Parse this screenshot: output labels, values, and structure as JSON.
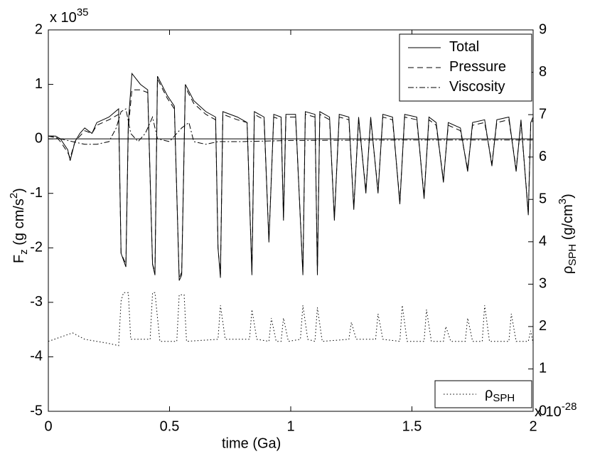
{
  "chart_data": {
    "type": "line",
    "xlabel": "time (Ga)",
    "ylabel": {
      "main": "F",
      "sub": "z",
      "rest": " (g cm/s",
      "sup": "2",
      "end": ")"
    },
    "y2label": {
      "main": "ρ",
      "sub": "SPH",
      "rest": " (g/cm",
      "sup": "3",
      "end": ")"
    },
    "y_exponent": {
      "base": "x 10",
      "power": "35"
    },
    "y2_exponent": {
      "base": "x 10",
      "power": "-28"
    },
    "xlim": [
      0,
      2
    ],
    "xticks": [
      0,
      0.5,
      1,
      1.5,
      2
    ],
    "ylim": [
      -5,
      2
    ],
    "yticks": [
      -5,
      -4,
      -3,
      -2,
      -1,
      0,
      1,
      2
    ],
    "y2lim": [
      0,
      9
    ],
    "y2ticks": [
      0,
      1,
      2,
      3,
      4,
      5,
      6,
      7,
      8,
      9
    ],
    "zero_line": true,
    "legend": "upper right",
    "legend2": "lower right",
    "series": [
      {
        "name": "Total",
        "color": "#000000",
        "style": "solid",
        "x": [
          0,
          0.03,
          0.05,
          0.08,
          0.09,
          0.11,
          0.13,
          0.15,
          0.18,
          0.2,
          0.25,
          0.29,
          0.3,
          0.32,
          0.33,
          0.345,
          0.38,
          0.41,
          0.43,
          0.44,
          0.45,
          0.49,
          0.52,
          0.54,
          0.55,
          0.565,
          0.6,
          0.65,
          0.69,
          0.7,
          0.71,
          0.72,
          0.78,
          0.82,
          0.84,
          0.85,
          0.89,
          0.91,
          0.93,
          0.96,
          0.97,
          0.98,
          1.02,
          1.05,
          1.06,
          1.1,
          1.11,
          1.12,
          1.16,
          1.18,
          1.2,
          1.24,
          1.26,
          1.28,
          1.31,
          1.33,
          1.36,
          1.38,
          1.42,
          1.45,
          1.47,
          1.52,
          1.55,
          1.57,
          1.6,
          1.63,
          1.65,
          1.7,
          1.73,
          1.75,
          1.8,
          1.83,
          1.85,
          1.9,
          1.93,
          1.95,
          1.98,
          1.99,
          2
        ],
        "values": [
          0.05,
          0.05,
          0,
          -0.2,
          -0.4,
          -0.05,
          0.1,
          0.2,
          0.1,
          0.3,
          0.4,
          0.55,
          -2.1,
          -2.35,
          0.3,
          1.2,
          1.0,
          0.9,
          -2.3,
          -2.5,
          1.15,
          0.8,
          0.6,
          -2.6,
          -2.5,
          1.0,
          0.7,
          0.5,
          0.4,
          -2.0,
          -2.55,
          0.5,
          0.4,
          0.3,
          -2.5,
          0.5,
          0.4,
          -1.9,
          0.45,
          0.4,
          -1.5,
          0.45,
          0.45,
          -2.5,
          0.5,
          0.45,
          -2.5,
          0.5,
          0.4,
          -1.5,
          0.45,
          0.4,
          -1.3,
          0.4,
          -1.0,
          0.4,
          -1.0,
          0.45,
          0.4,
          -1.2,
          0.45,
          0.4,
          -1.1,
          0.4,
          0.3,
          -0.8,
          0.3,
          0.2,
          -0.6,
          0.3,
          0.35,
          -0.5,
          0.35,
          0.4,
          -0.6,
          0.35,
          -1.4,
          0.3,
          0.4
        ]
      },
      {
        "name": "Pressure",
        "color": "#000000",
        "style": "dashed",
        "x": [
          0,
          0.03,
          0.05,
          0.08,
          0.09,
          0.11,
          0.13,
          0.15,
          0.18,
          0.2,
          0.25,
          0.29,
          0.3,
          0.32,
          0.33,
          0.345,
          0.38,
          0.41,
          0.43,
          0.44,
          0.45,
          0.49,
          0.52,
          0.54,
          0.55,
          0.565,
          0.6,
          0.65,
          0.69,
          0.7,
          0.71,
          0.72,
          0.78,
          0.82,
          0.84,
          0.85,
          0.89,
          0.91,
          0.93,
          0.96,
          0.97,
          0.98,
          1.02,
          1.05,
          1.06,
          1.1,
          1.11,
          1.12,
          1.16,
          1.18,
          1.2,
          1.24,
          1.26,
          1.28,
          1.31,
          1.33,
          1.36,
          1.38,
          1.42,
          1.45,
          1.47,
          1.52,
          1.55,
          1.57,
          1.6,
          1.63,
          1.65,
          1.7,
          1.73,
          1.75,
          1.8,
          1.83,
          1.85,
          1.9,
          1.93,
          1.95,
          1.98,
          1.99,
          2
        ],
        "values": [
          0.05,
          0.05,
          -0.05,
          -0.25,
          -0.35,
          -0.05,
          0.05,
          0.15,
          0.1,
          0.25,
          0.35,
          0.45,
          -2.1,
          -2.3,
          0.2,
          0.9,
          0.9,
          0.85,
          -2.3,
          -2.45,
          1.1,
          0.75,
          0.55,
          -2.55,
          -2.45,
          0.95,
          0.65,
          0.45,
          0.35,
          -2.0,
          -2.5,
          0.45,
          0.35,
          0.3,
          -2.45,
          0.45,
          0.35,
          -1.85,
          0.4,
          0.35,
          -1.45,
          0.4,
          0.4,
          -2.45,
          0.45,
          0.4,
          -2.45,
          0.45,
          0.35,
          -1.45,
          0.4,
          0.35,
          -1.25,
          0.35,
          -0.95,
          0.35,
          -0.95,
          0.4,
          0.35,
          -1.15,
          0.4,
          0.35,
          -1.05,
          0.35,
          0.25,
          -0.75,
          0.25,
          0.15,
          -0.55,
          0.25,
          0.3,
          -0.45,
          0.3,
          0.35,
          -0.55,
          0.3,
          -1.35,
          0.25,
          0.35
        ]
      },
      {
        "name": "Viscosity",
        "color": "#000000",
        "style": "dashdot",
        "x": [
          0,
          0.05,
          0.1,
          0.15,
          0.2,
          0.25,
          0.28,
          0.3,
          0.32,
          0.34,
          0.37,
          0.4,
          0.43,
          0.45,
          0.5,
          0.55,
          0.58,
          0.6,
          0.65,
          0.7,
          0.8,
          1,
          1.5,
          2
        ],
        "values": [
          0.05,
          0,
          -0.05,
          -0.1,
          -0.1,
          -0.05,
          0.2,
          0.5,
          0.55,
          0.1,
          -0.05,
          0.1,
          0.4,
          0,
          -0.05,
          0.2,
          0.3,
          -0.05,
          -0.1,
          -0.05,
          -0.05,
          -0.03,
          -0.02,
          -0.02
        ]
      },
      {
        "name": "ρ",
        "name_sub": "SPH",
        "color": "#000000",
        "style": "dotted",
        "axis": "y2",
        "x": [
          0,
          0.05,
          0.1,
          0.15,
          0.2,
          0.25,
          0.29,
          0.3,
          0.31,
          0.33,
          0.34,
          0.35,
          0.42,
          0.43,
          0.44,
          0.46,
          0.47,
          0.53,
          0.54,
          0.56,
          0.57,
          0.7,
          0.71,
          0.73,
          0.83,
          0.84,
          0.86,
          0.91,
          0.92,
          0.94,
          0.96,
          0.97,
          0.99,
          1.04,
          1.05,
          1.07,
          1.1,
          1.11,
          1.13,
          1.24,
          1.25,
          1.27,
          1.35,
          1.36,
          1.38,
          1.45,
          1.46,
          1.48,
          1.55,
          1.56,
          1.58,
          1.63,
          1.64,
          1.66,
          1.72,
          1.73,
          1.75,
          1.79,
          1.8,
          1.82,
          1.9,
          1.91,
          1.93,
          1.98,
          1.99,
          2
        ],
        "values": [
          1.65,
          1.75,
          1.85,
          1.7,
          1.65,
          1.6,
          1.55,
          2.6,
          2.8,
          2.8,
          1.7,
          1.7,
          1.7,
          2.8,
          2.8,
          1.65,
          1.65,
          1.65,
          2.75,
          2.75,
          1.65,
          1.7,
          2.5,
          1.7,
          1.7,
          2.4,
          1.7,
          1.65,
          2.2,
          1.65,
          1.65,
          2.2,
          1.65,
          1.7,
          2.5,
          1.7,
          1.65,
          2.45,
          1.65,
          1.7,
          2.1,
          1.7,
          1.7,
          2.3,
          1.7,
          1.65,
          2.5,
          1.65,
          1.65,
          2.4,
          1.65,
          1.65,
          2.0,
          1.65,
          1.65,
          2.2,
          1.65,
          1.65,
          2.5,
          1.65,
          1.65,
          2.3,
          1.65,
          1.65,
          1.9,
          1.6
        ]
      }
    ]
  }
}
